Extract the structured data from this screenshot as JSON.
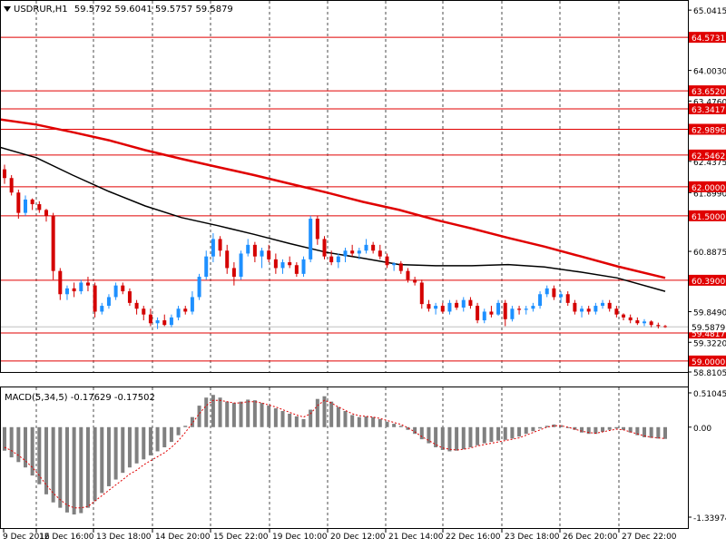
{
  "header": {
    "symbol": "USDRUR,H1",
    "ohlc": "59.5792 59.6041 59.5757 59.5879"
  },
  "macd_header": "MACD(5,34,5) -0.17629 -0.17502",
  "colors": {
    "bull": "#1e90ff",
    "bear": "#d40000",
    "hline": "#e00000",
    "ma_slow": "#e00000",
    "ma_fast": "#000000",
    "macd_bar": "#808080",
    "signal": "#e00000",
    "grid": "#000000"
  },
  "chart_data": [
    {
      "type": "candlestick",
      "ylim": [
        58.8105,
        65.2
      ],
      "y_tick_labels": [
        "65.0415",
        "64.0030",
        "63.4760",
        "62.4375",
        "61.8990",
        "60.8875",
        "59.8490",
        "59.3220",
        "58.8105"
      ],
      "x_tick_labels": [
        "9 Dec 2016",
        "12 Dec 16:00",
        "13 Dec 18:00",
        "14 Dec 20:00",
        "15 Dec 22:00",
        "19 Dec 10:00",
        "20 Dec 12:00",
        "21 Dec 14:00",
        "22 Dec 16:00",
        "23 Dec 18:00",
        "26 Dec 20:00",
        "27 Dec 22:00"
      ],
      "current_price": "59.5879",
      "horizontal_levels": [
        "64.5731",
        "63.6520",
        "63.3417",
        "62.9896",
        "62.5462",
        "62.0000",
        "61.5000",
        "60.3900",
        "59.4817",
        "59.0000"
      ],
      "moving_averages": [
        {
          "color": "#e00000",
          "points": [
            [
              0,
              63.16
            ],
            [
              40,
              63.07
            ],
            [
              80,
              62.94
            ],
            [
              120,
              62.8
            ],
            [
              160,
              62.63
            ],
            [
              200,
              62.48
            ],
            [
              240,
              62.34
            ],
            [
              280,
              62.2
            ],
            [
              320,
              62.05
            ],
            [
              360,
              61.9
            ],
            [
              400,
              61.74
            ],
            [
              440,
              61.6
            ],
            [
              480,
              61.43
            ],
            [
              520,
              61.28
            ],
            [
              560,
              61.12
            ],
            [
              600,
              60.97
            ],
            [
              640,
              60.8
            ],
            [
              680,
              60.63
            ],
            [
              733,
              60.43
            ]
          ]
        },
        {
          "color": "#000000",
          "points": [
            [
              0,
              62.68
            ],
            [
              40,
              62.5
            ],
            [
              80,
              62.2
            ],
            [
              120,
              61.92
            ],
            [
              160,
              61.67
            ],
            [
              200,
              61.47
            ],
            [
              240,
              61.33
            ],
            [
              280,
              61.18
            ],
            [
              320,
              61.02
            ],
            [
              360,
              60.87
            ],
            [
              400,
              60.77
            ],
            [
              440,
              60.66
            ],
            [
              480,
              60.64
            ],
            [
              520,
              60.64
            ],
            [
              560,
              60.66
            ],
            [
              600,
              60.62
            ],
            [
              640,
              60.53
            ],
            [
              680,
              60.43
            ],
            [
              733,
              60.2
            ]
          ]
        }
      ],
      "candles": [
        [
          62.3,
          62.38,
          62.05,
          62.15
        ],
        [
          62.15,
          62.2,
          61.85,
          61.9
        ],
        [
          61.9,
          61.95,
          61.45,
          61.55
        ],
        [
          61.55,
          61.85,
          61.5,
          61.78
        ],
        [
          61.78,
          61.8,
          61.6,
          61.7
        ],
        [
          61.7,
          61.75,
          61.55,
          61.6
        ],
        [
          61.6,
          61.62,
          61.4,
          61.5
        ],
        [
          61.5,
          61.55,
          60.4,
          60.55
        ],
        [
          60.55,
          60.6,
          60.05,
          60.15
        ],
        [
          60.15,
          60.3,
          60.05,
          60.25
        ],
        [
          60.25,
          60.35,
          60.1,
          60.2
        ],
        [
          60.2,
          60.4,
          60.15,
          60.35
        ],
        [
          60.35,
          60.45,
          60.2,
          60.3
        ],
        [
          60.3,
          60.35,
          59.75,
          59.85
        ],
        [
          59.85,
          60.0,
          59.8,
          59.95
        ],
        [
          59.95,
          60.15,
          59.9,
          60.1
        ],
        [
          60.1,
          60.35,
          60.05,
          60.3
        ],
        [
          60.3,
          60.35,
          60.15,
          60.2
        ],
        [
          60.2,
          60.25,
          59.95,
          60.0
        ],
        [
          60.0,
          60.05,
          59.8,
          59.9
        ],
        [
          59.9,
          59.95,
          59.7,
          59.8
        ],
        [
          59.8,
          59.9,
          59.6,
          59.65
        ],
        [
          59.65,
          59.75,
          59.55,
          59.7
        ],
        [
          59.7,
          59.8,
          59.6,
          59.62
        ],
        [
          59.62,
          59.8,
          59.58,
          59.75
        ],
        [
          59.75,
          59.95,
          59.7,
          59.9
        ],
        [
          59.9,
          59.95,
          59.8,
          59.85
        ],
        [
          59.85,
          60.2,
          59.8,
          60.1
        ],
        [
          60.1,
          60.5,
          60.05,
          60.45
        ],
        [
          60.45,
          60.9,
          60.4,
          60.8
        ],
        [
          60.8,
          61.2,
          60.7,
          61.1
        ],
        [
          61.1,
          61.15,
          60.8,
          60.9
        ],
        [
          60.9,
          61.0,
          60.5,
          60.6
        ],
        [
          60.6,
          60.7,
          60.3,
          60.45
        ],
        [
          60.45,
          60.9,
          60.4,
          60.85
        ],
        [
          60.85,
          61.1,
          60.8,
          61.0
        ],
        [
          61.0,
          61.05,
          60.7,
          60.8
        ],
        [
          60.8,
          60.95,
          60.6,
          60.9
        ],
        [
          60.9,
          61.0,
          60.7,
          60.75
        ],
        [
          60.75,
          60.85,
          60.5,
          60.6
        ],
        [
          60.6,
          60.75,
          60.5,
          60.7
        ],
        [
          60.7,
          60.8,
          60.6,
          60.65
        ],
        [
          60.65,
          60.7,
          60.45,
          60.5
        ],
        [
          60.5,
          60.8,
          60.45,
          60.75
        ],
        [
          60.75,
          61.5,
          60.7,
          61.45
        ],
        [
          61.45,
          61.5,
          61.0,
          61.1
        ],
        [
          61.1,
          61.15,
          60.75,
          60.8
        ],
        [
          60.8,
          60.9,
          60.65,
          60.7
        ],
        [
          60.7,
          60.85,
          60.6,
          60.8
        ],
        [
          60.8,
          60.95,
          60.7,
          60.9
        ],
        [
          60.9,
          61.0,
          60.8,
          60.85
        ],
        [
          60.85,
          60.95,
          60.75,
          60.9
        ],
        [
          60.9,
          61.1,
          60.85,
          61.0
        ],
        [
          61.0,
          61.05,
          60.85,
          60.9
        ],
        [
          60.9,
          61.0,
          60.75,
          60.8
        ],
        [
          60.8,
          60.85,
          60.6,
          60.65
        ],
        [
          60.65,
          60.7,
          60.55,
          60.68
        ],
        [
          60.68,
          60.72,
          60.5,
          60.55
        ],
        [
          60.55,
          60.6,
          60.35,
          60.4
        ],
        [
          60.4,
          60.45,
          60.3,
          60.35
        ],
        [
          60.35,
          60.4,
          59.9,
          59.98
        ],
        [
          59.98,
          60.05,
          59.85,
          59.9
        ],
        [
          59.9,
          60.0,
          59.8,
          59.95
        ],
        [
          59.95,
          60.0,
          59.82,
          59.85
        ],
        [
          59.85,
          60.05,
          59.8,
          60.0
        ],
        [
          60.0,
          60.05,
          59.88,
          59.92
        ],
        [
          59.92,
          60.1,
          59.85,
          60.05
        ],
        [
          60.05,
          60.1,
          59.9,
          59.95
        ],
        [
          59.95,
          60.0,
          59.65,
          59.7
        ],
        [
          59.7,
          59.9,
          59.65,
          59.85
        ],
        [
          59.85,
          59.95,
          59.75,
          59.8
        ],
        [
          59.8,
          60.05,
          59.78,
          60.0
        ],
        [
          60.0,
          60.05,
          59.6,
          59.72
        ],
        [
          59.72,
          59.95,
          59.68,
          59.9
        ],
        [
          59.9,
          59.95,
          59.8,
          59.88
        ],
        [
          59.88,
          59.95,
          59.8,
          59.9
        ],
        [
          59.9,
          60.0,
          59.85,
          59.95
        ],
        [
          59.95,
          60.2,
          59.9,
          60.15
        ],
        [
          60.15,
          60.3,
          60.1,
          60.25
        ],
        [
          60.25,
          60.3,
          60.05,
          60.1
        ],
        [
          60.1,
          60.2,
          60.0,
          60.15
        ],
        [
          60.15,
          60.2,
          59.95,
          60.0
        ],
        [
          60.0,
          60.05,
          59.8,
          59.85
        ],
        [
          59.85,
          59.95,
          59.75,
          59.9
        ],
        [
          59.9,
          59.95,
          59.8,
          59.85
        ],
        [
          59.85,
          60.0,
          59.8,
          59.95
        ],
        [
          59.95,
          60.05,
          59.9,
          60.0
        ],
        [
          60.0,
          60.05,
          59.85,
          59.9
        ],
        [
          59.9,
          59.95,
          59.75,
          59.8
        ],
        [
          59.8,
          59.82,
          59.7,
          59.75
        ],
        [
          59.75,
          59.8,
          59.65,
          59.7
        ],
        [
          59.7,
          59.75,
          59.62,
          59.65
        ],
        [
          59.65,
          59.72,
          59.6,
          59.68
        ],
        [
          59.68,
          59.7,
          59.58,
          59.62
        ],
        [
          59.62,
          59.66,
          59.56,
          59.6
        ],
        [
          59.6,
          59.62,
          59.57,
          59.59
        ]
      ]
    },
    {
      "type": "bar",
      "title": "MACD(5,34,5) -0.17629 -0.17502",
      "ylim": [
        -1.33974,
        0.51045
      ],
      "y_tick_labels": [
        "0.51045",
        "0.00",
        "-1.33974"
      ],
      "macd_values": [
        -0.35,
        -0.45,
        -0.52,
        -0.6,
        -0.72,
        -0.85,
        -1.0,
        -1.12,
        -1.2,
        -1.27,
        -1.3,
        -1.28,
        -1.2,
        -1.1,
        -0.98,
        -0.88,
        -0.78,
        -0.68,
        -0.6,
        -0.54,
        -0.48,
        -0.42,
        -0.36,
        -0.3,
        -0.22,
        -0.12,
        0.02,
        0.15,
        0.32,
        0.44,
        0.48,
        0.44,
        0.38,
        0.36,
        0.38,
        0.41,
        0.4,
        0.36,
        0.32,
        0.28,
        0.24,
        0.2,
        0.16,
        0.12,
        0.26,
        0.42,
        0.46,
        0.38,
        0.3,
        0.24,
        0.18,
        0.15,
        0.16,
        0.15,
        0.12,
        0.08,
        0.05,
        0.02,
        -0.04,
        -0.1,
        -0.18,
        -0.24,
        -0.3,
        -0.34,
        -0.36,
        -0.35,
        -0.33,
        -0.3,
        -0.27,
        -0.24,
        -0.22,
        -0.2,
        -0.19,
        -0.17,
        -0.14,
        -0.1,
        -0.06,
        -0.02,
        0.02,
        0.04,
        0.03,
        0.0,
        -0.04,
        -0.08,
        -0.1,
        -0.1,
        -0.07,
        -0.04,
        -0.02,
        -0.04,
        -0.08,
        -0.12,
        -0.15,
        -0.16,
        -0.17,
        -0.175
      ],
      "signal_values": [
        -0.3,
        -0.35,
        -0.42,
        -0.5,
        -0.6,
        -0.72,
        -0.86,
        -0.98,
        -1.08,
        -1.16,
        -1.2,
        -1.2,
        -1.18,
        -1.1,
        -1.02,
        -0.94,
        -0.86,
        -0.78,
        -0.7,
        -0.64,
        -0.56,
        -0.5,
        -0.44,
        -0.38,
        -0.3,
        -0.2,
        -0.08,
        0.06,
        0.2,
        0.32,
        0.4,
        0.4,
        0.38,
        0.36,
        0.36,
        0.38,
        0.38,
        0.36,
        0.33,
        0.3,
        0.26,
        0.22,
        0.18,
        0.15,
        0.2,
        0.32,
        0.4,
        0.36,
        0.3,
        0.25,
        0.2,
        0.17,
        0.16,
        0.15,
        0.13,
        0.1,
        0.07,
        0.04,
        -0.01,
        -0.07,
        -0.14,
        -0.2,
        -0.26,
        -0.31,
        -0.33,
        -0.34,
        -0.33,
        -0.31,
        -0.28,
        -0.26,
        -0.24,
        -0.22,
        -0.2,
        -0.18,
        -0.16,
        -0.12,
        -0.08,
        -0.04,
        0.0,
        0.02,
        0.02,
        0.0,
        -0.03,
        -0.06,
        -0.08,
        -0.09,
        -0.07,
        -0.05,
        -0.03,
        -0.04,
        -0.07,
        -0.1,
        -0.13,
        -0.15,
        -0.16,
        -0.17
      ]
    }
  ]
}
